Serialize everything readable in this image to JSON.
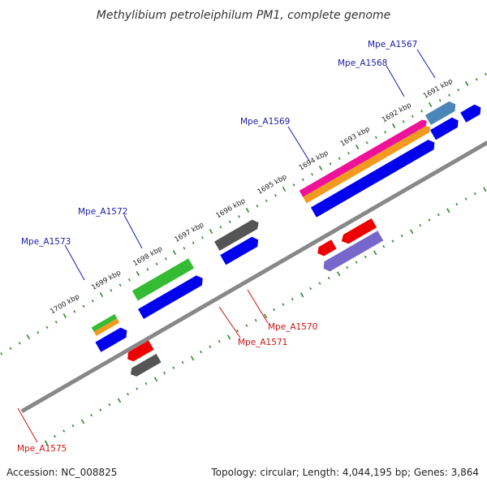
{
  "title": "Methylibium petroleiphilum PM1, complete genome",
  "accession": "Accession: NC_008825",
  "summary": "Topology: circular; Length: 4,044,195 bp; Genes: 3,864",
  "ticks": [
    "1691 kbp",
    "1692 kbp",
    "1693 kbp",
    "1694 kbp",
    "1695 kbp",
    "1696 kbp",
    "1697 kbp",
    "1698 kbp",
    "1699 kbp",
    "1700 kbp"
  ],
  "colors": {
    "cds_forward": "#0000ee",
    "cds_reverse": "#ee0000",
    "backbone": "#888888",
    "tick_mark": "#2a8a2a",
    "label_forward": "#1a1aaa",
    "label_reverse": "#cc1111"
  },
  "features": [
    {
      "name": "Mpe_A1567",
      "strand": "forward",
      "cog_color": "#4a86b8"
    },
    {
      "name": "Mpe_A1568",
      "strand": "forward",
      "cog_color": "#ee1199"
    },
    {
      "name": "Mpe_A1569",
      "strand": "forward",
      "cog_color": "#ee1199"
    },
    {
      "name": "Mpe_A1572",
      "strand": "forward",
      "cog_color": "#555555"
    },
    {
      "name": "Mpe_A1573",
      "strand": "forward",
      "cog_color": "#33bb33"
    },
    {
      "name": "Mpe_A1570",
      "strand": "reverse",
      "cog_color": "#ee0000"
    },
    {
      "name": "Mpe_A1571",
      "strand": "reverse",
      "cog_color": "#7766cc"
    },
    {
      "name": "Mpe_A1575",
      "strand": "reverse",
      "cog_color": "#555555"
    }
  ]
}
